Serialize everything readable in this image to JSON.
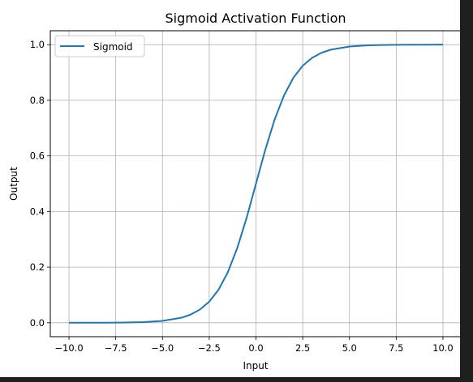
{
  "chart_data": {
    "type": "line",
    "title": "Sigmoid Activation Function",
    "xlabel": "Input",
    "ylabel": "Output",
    "xlim": [
      -11.0,
      11.0
    ],
    "ylim": [
      -0.05,
      1.05
    ],
    "xticks": [
      -10.0,
      -7.5,
      -5.0,
      -2.5,
      0.0,
      2.5,
      5.0,
      7.5,
      10.0
    ],
    "xtick_labels": [
      "−10.0",
      "−7.5",
      "−5.0",
      "−2.5",
      "0.0",
      "2.5",
      "5.0",
      "7.5",
      "10.0"
    ],
    "yticks": [
      0.0,
      0.2,
      0.4,
      0.6,
      0.8,
      1.0
    ],
    "ytick_labels": [
      "0.0",
      "0.2",
      "0.4",
      "0.6",
      "0.8",
      "1.0"
    ],
    "grid": true,
    "legend_position": "upper-left",
    "series": [
      {
        "name": "Sigmoid",
        "color": "#1f77b4",
        "x": [
          -10,
          -9,
          -8,
          -7,
          -6,
          -5,
          -4,
          -3.5,
          -3,
          -2.5,
          -2,
          -1.5,
          -1,
          -0.5,
          0,
          0.5,
          1,
          1.5,
          2,
          2.5,
          3,
          3.5,
          4,
          5,
          6,
          7,
          8,
          9,
          10
        ],
        "y": [
          4.54e-05,
          0.0001234,
          0.0003354,
          0.000911,
          0.002473,
          0.006693,
          0.01799,
          0.02931,
          0.04743,
          0.07586,
          0.1192,
          0.1824,
          0.2689,
          0.3775,
          0.5,
          0.6225,
          0.7311,
          0.8176,
          0.8808,
          0.9241,
          0.9526,
          0.9707,
          0.982,
          0.9933,
          0.9975,
          0.9991,
          0.9997,
          0.9999,
          1.0
        ]
      }
    ]
  }
}
